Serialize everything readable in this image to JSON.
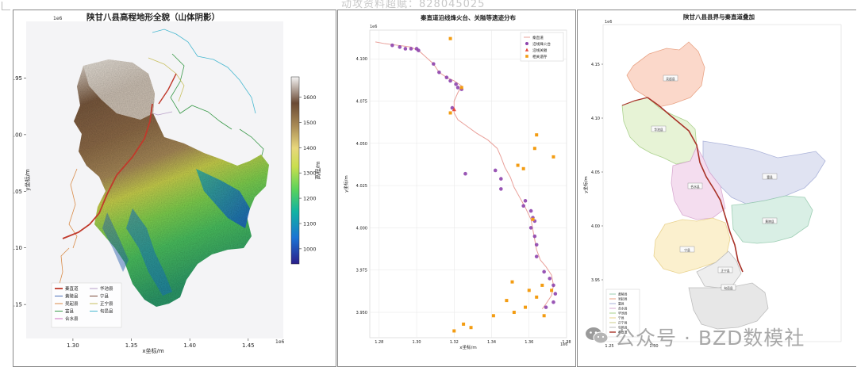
{
  "top_text": "动攻资料超赋：828045025",
  "watermark": {
    "text": "公众号 · BZD数模社",
    "icon": "wechat-icon"
  },
  "chart_data": [
    {
      "type": "heatmap",
      "title": "陕甘八县高程地形全貌（山体阴影）",
      "xlabel": "x坐标/m",
      "ylabel": "y坐标/m",
      "x_ticks": [
        "1.30",
        "1.35",
        "1.40",
        "1.45"
      ],
      "x_offset": "1e6",
      "y_ticks": [
        "3.95",
        "4.00",
        "4.05",
        "4.10",
        "4.15"
      ],
      "y_offset": "1e6",
      "xlim": [
        1.26,
        1.48
      ],
      "ylim": [
        4.18,
        3.9
      ],
      "colorbar": {
        "label": "高程/m",
        "ticks": [
          "1600",
          "1500",
          "1400",
          "1300",
          "1200",
          "1100",
          "1000"
        ],
        "range": [
          940,
          1680
        ],
        "colors": [
          "#2a1e8a",
          "#1a73d4",
          "#11b3a2",
          "#5cd35a",
          "#c9de4e",
          "#e8d77c",
          "#a88a55",
          "#6a4a34",
          "#f4f4f4"
        ]
      },
      "legend": {
        "placement": "lower-left",
        "entries": [
          {
            "name": "秦直道",
            "color": "#c0392b"
          },
          {
            "name": "华池县",
            "color": "#b8a0c8"
          },
          {
            "name": "黄陵县",
            "color": "#4a6fb8"
          },
          {
            "name": "宁县",
            "color": "#7b4b3a"
          },
          {
            "name": "吴起县",
            "color": "#d98c4a"
          },
          {
            "name": "正宁县",
            "color": "#c8c060"
          },
          {
            "name": "富县",
            "color": "#3a9a4a"
          },
          {
            "name": "旬邑县",
            "color": "#48b8d0"
          },
          {
            "name": "合水县",
            "color": "#d070c0"
          }
        ]
      }
    },
    {
      "type": "scatter",
      "title": "秦直道沿线烽火台、关隘等遗迹分布",
      "xlabel": "x坐标/m",
      "ylabel": "y坐标/m",
      "x_offset": "1e6",
      "y_offset": "1e6",
      "xlim": [
        1.275,
        1.38
      ],
      "ylim": [
        4.117,
        3.935
      ],
      "x_ticks": [
        1.28,
        1.3,
        1.32,
        1.34,
        1.36,
        1.38
      ],
      "y_ticks": [
        4.1,
        4.075,
        4.05,
        4.025,
        4.0,
        3.975,
        3.95
      ],
      "legend": {
        "placement": "top-right",
        "entries": [
          {
            "name": "秦直道",
            "color": "#e9a09a",
            "marker": "line"
          },
          {
            "name": "沿线烽火台",
            "color": "#8e44ad",
            "marker": "circle"
          },
          {
            "name": "沿线关隘",
            "color": "#e74c3c",
            "marker": "triangle"
          },
          {
            "name": "相关遗存",
            "color": "#f39c12",
            "marker": "square"
          }
        ]
      },
      "series": [
        {
          "name": "秦直道",
          "points": [
            [
              1.278,
              4.11
            ],
            [
              1.283,
              4.109
            ],
            [
              1.29,
              4.108
            ],
            [
              1.297,
              4.107
            ],
            [
              1.302,
              4.104
            ],
            [
              1.306,
              4.1
            ],
            [
              1.309,
              4.097
            ],
            [
              1.312,
              4.092
            ],
            [
              1.316,
              4.089
            ],
            [
              1.32,
              4.087
            ],
            [
              1.324,
              4.084
            ],
            [
              1.322,
              4.08
            ],
            [
              1.32,
              4.075
            ],
            [
              1.32,
              4.068
            ],
            [
              1.322,
              4.064
            ],
            [
              1.327,
              4.06
            ],
            [
              1.332,
              4.056
            ],
            [
              1.338,
              4.052
            ],
            [
              1.343,
              4.047
            ],
            [
              1.345,
              4.042
            ],
            [
              1.347,
              4.036
            ],
            [
              1.35,
              4.03
            ],
            [
              1.352,
              4.024
            ],
            [
              1.355,
              4.018
            ],
            [
              1.358,
              4.012
            ],
            [
              1.361,
              4.005
            ],
            [
              1.362,
              3.999
            ],
            [
              1.363,
              3.993
            ],
            [
              1.364,
              3.987
            ],
            [
              1.366,
              3.981
            ],
            [
              1.369,
              3.977
            ],
            [
              1.372,
              3.972
            ],
            [
              1.373,
              3.966
            ],
            [
              1.372,
              3.96
            ],
            [
              1.369,
              3.955
            ],
            [
              1.367,
              3.952
            ]
          ]
        },
        {
          "name": "沿线烽火台",
          "points": [
            [
              1.287,
              4.108
            ],
            [
              1.291,
              4.107
            ],
            [
              1.294,
              4.106
            ],
            [
              1.297,
              4.106
            ],
            [
              1.3,
              4.106
            ],
            [
              1.301,
              4.105
            ],
            [
              1.309,
              4.097
            ],
            [
              1.312,
              4.092
            ],
            [
              1.316,
              4.089
            ],
            [
              1.318,
              4.087
            ],
            [
              1.321,
              4.085
            ],
            [
              1.322,
              4.083
            ],
            [
              1.324,
              4.082
            ],
            [
              1.319,
              4.071
            ],
            [
              1.326,
              4.032
            ],
            [
              1.342,
              4.034
            ],
            [
              1.345,
              4.029
            ],
            [
              1.345,
              4.023
            ],
            [
              1.358,
              4.016
            ],
            [
              1.357,
              4.013
            ],
            [
              1.361,
              4.01
            ],
            [
              1.362,
              4.006
            ],
            [
              1.363,
              4.004
            ],
            [
              1.361,
              4.0
            ],
            [
              1.363,
              3.995
            ],
            [
              1.364,
              3.99
            ],
            [
              1.364,
              3.983
            ],
            [
              1.368,
              3.974
            ],
            [
              1.371,
              3.97
            ],
            [
              1.373,
              3.966
            ],
            [
              1.374,
              3.961
            ],
            [
              1.373,
              3.956
            ],
            [
              1.369,
              3.953
            ]
          ]
        },
        {
          "name": "沿线关隘",
          "points": [
            [
              1.32,
              4.07
            ]
          ]
        },
        {
          "name": "相关遗存",
          "points": [
            [
              1.318,
              4.112
            ],
            [
              1.324,
              4.083
            ],
            [
              1.318,
              4.068
            ],
            [
              1.364,
              4.055
            ],
            [
              1.363,
              4.047
            ],
            [
              1.373,
              4.042
            ],
            [
              1.354,
              4.037
            ],
            [
              1.357,
              4.035
            ],
            [
              1.362,
              4.005
            ],
            [
              1.351,
              3.968
            ],
            [
              1.36,
              3.963
            ],
            [
              1.367,
              3.966
            ],
            [
              1.372,
              3.963
            ],
            [
              1.364,
              3.959
            ],
            [
              1.348,
              3.957
            ],
            [
              1.358,
              3.953
            ],
            [
              1.352,
              3.95
            ],
            [
              1.368,
              3.948
            ],
            [
              1.341,
              3.948
            ],
            [
              1.325,
              3.943
            ],
            [
              1.329,
              3.941
            ],
            [
              1.32,
              3.939
            ]
          ]
        }
      ]
    },
    {
      "type": "map",
      "title": "陕甘八县县界与秦直道叠加",
      "xlabel": "x坐标/m",
      "ylabel": "y坐标/m",
      "y_offset": "1e6",
      "y_ticks": [
        "4.15",
        "4.10",
        "4.05",
        "4.00",
        "3.95"
      ],
      "x_ticks": [
        "1.25",
        "1.30"
      ],
      "x_offset": "1e6",
      "counties": [
        {
          "name": "吴起县",
          "fill": "#fbd6c8",
          "stroke": "#e8a080"
        },
        {
          "name": "华池县",
          "fill": "#e6f3d4",
          "stroke": "#a8d08a"
        },
        {
          "name": "富县",
          "fill": "#dfe2f2",
          "stroke": "#a8b0d8"
        },
        {
          "name": "合水县",
          "fill": "#f4dcef",
          "stroke": "#d8a8d0"
        },
        {
          "name": "黄陵县",
          "fill": "#d8efe4",
          "stroke": "#98ccb0"
        },
        {
          "name": "宁县",
          "fill": "#fbf0cc",
          "stroke": "#e8d088"
        },
        {
          "name": "正宁县",
          "fill": "#eeeeee",
          "stroke": "#bbbbbb"
        },
        {
          "name": "旬邑县",
          "fill": "#e6e6e6",
          "stroke": "#bbbbbb"
        }
      ],
      "legend": {
        "placement": "lower-left",
        "entries": [
          {
            "name": "黄陵县",
            "color": "#98ccb0"
          },
          {
            "name": "吴起县",
            "color": "#e8a080"
          },
          {
            "name": "富县",
            "color": "#a8b0d8"
          },
          {
            "name": "合水县",
            "color": "#d8a8d0"
          },
          {
            "name": "华池县",
            "color": "#a8d08a"
          },
          {
            "name": "宁县",
            "color": "#e8d088"
          },
          {
            "name": "正宁县",
            "color": "#cccc88"
          },
          {
            "name": "旬邑县",
            "color": "#bbbbbb"
          },
          {
            "name": "秦直道",
            "color": "#a83228"
          }
        ]
      }
    }
  ]
}
